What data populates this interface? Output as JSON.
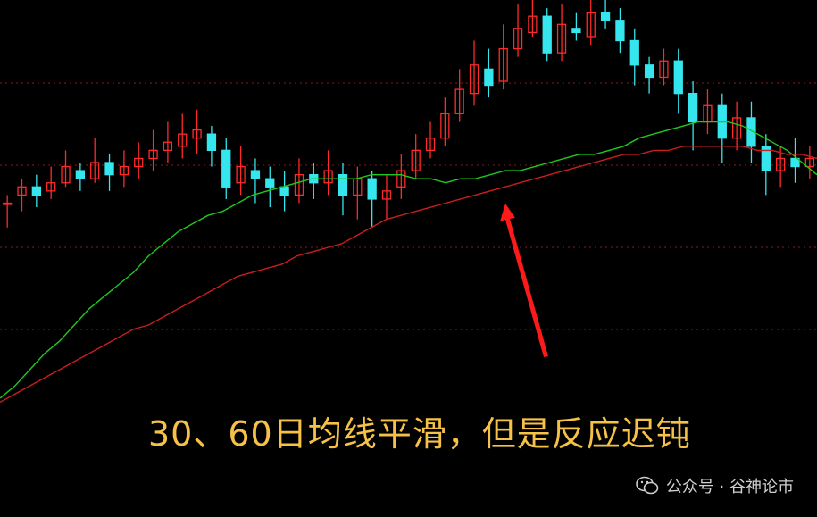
{
  "chart_data": {
    "type": "candlestick",
    "title": "",
    "annotation": "30、60日均线平滑，但是反应迟钝",
    "ylim": [
      0,
      100
    ],
    "grid": true,
    "colors": {
      "up": "#ff2a2a",
      "down": "#36e6ee",
      "ma30": "#1ec81e",
      "ma60": "#c81e1e",
      "background": "#000000",
      "grid": "#8a1a1a"
    },
    "series": [
      {
        "name": "MA30",
        "values": [
          2,
          5,
          9,
          13,
          16,
          20,
          24,
          27,
          30,
          33,
          37,
          40,
          43,
          45,
          47,
          48,
          50,
          52,
          53,
          54,
          55,
          56,
          56,
          56,
          56,
          57,
          57,
          57,
          56,
          56,
          55,
          56,
          56,
          57,
          58,
          58,
          59,
          60,
          61,
          62,
          62,
          63,
          64,
          66,
          67,
          68,
          69,
          70,
          70,
          70,
          69,
          67,
          65,
          63,
          60,
          57
        ]
      },
      {
        "name": "MA60",
        "values": [
          1,
          3,
          5,
          7,
          9,
          11,
          13,
          15,
          17,
          19,
          20,
          22,
          24,
          26,
          28,
          30,
          32,
          33,
          34,
          35,
          37,
          38,
          39,
          40,
          42,
          44,
          46,
          47,
          48,
          49,
          50,
          51,
          52,
          53,
          54,
          55,
          56,
          57,
          58,
          59,
          60,
          61,
          62,
          62,
          63,
          63,
          64,
          64,
          64,
          64,
          64,
          63,
          63,
          62,
          62,
          61
        ]
      }
    ],
    "candles": [
      [
        50,
        50,
        52,
        44
      ],
      [
        52,
        54,
        56,
        48
      ],
      [
        54,
        52,
        57,
        49
      ],
      [
        53,
        55,
        59,
        51
      ],
      [
        55,
        59,
        63,
        54
      ],
      [
        58,
        56,
        60,
        53
      ],
      [
        56,
        60,
        66,
        55
      ],
      [
        60,
        57,
        62,
        53
      ],
      [
        57,
        59,
        63,
        54
      ],
      [
        59,
        61,
        65,
        56
      ],
      [
        61,
        63,
        68,
        58
      ],
      [
        63,
        65,
        70,
        60
      ],
      [
        64,
        67,
        72,
        61
      ],
      [
        66,
        68,
        73,
        62
      ],
      [
        67,
        63,
        69,
        59
      ],
      [
        63,
        54,
        66,
        51
      ],
      [
        55,
        59,
        64,
        52
      ],
      [
        58,
        56,
        61,
        50
      ],
      [
        56,
        54,
        59,
        49
      ],
      [
        54,
        52,
        58,
        48
      ],
      [
        52,
        57,
        61,
        50
      ],
      [
        57,
        55,
        60,
        51
      ],
      [
        55,
        58,
        63,
        52
      ],
      [
        57,
        52,
        60,
        47
      ],
      [
        52,
        56,
        59,
        46
      ],
      [
        56,
        51,
        58,
        44
      ],
      [
        51,
        53,
        57,
        46
      ],
      [
        54,
        58,
        62,
        51
      ],
      [
        58,
        63,
        67,
        56
      ],
      [
        63,
        66,
        70,
        61
      ],
      [
        66,
        72,
        76,
        64
      ],
      [
        72,
        78,
        83,
        70
      ],
      [
        77,
        84,
        90,
        74
      ],
      [
        83,
        79,
        88,
        76
      ],
      [
        80,
        88,
        94,
        78
      ],
      [
        88,
        93,
        99,
        86
      ],
      [
        92,
        96,
        100,
        91
      ],
      [
        96,
        87,
        98,
        85
      ],
      [
        87,
        94,
        99,
        85
      ],
      [
        93,
        92,
        97,
        90
      ],
      [
        91,
        97,
        100,
        89
      ],
      [
        97,
        95,
        100,
        93
      ],
      [
        95,
        90,
        98,
        87
      ],
      [
        90,
        84,
        93,
        79
      ],
      [
        84,
        81,
        86,
        77
      ],
      [
        81,
        85,
        88,
        79
      ],
      [
        85,
        77,
        88,
        72
      ],
      [
        77,
        70,
        80,
        63
      ],
      [
        70,
        74,
        78,
        67
      ],
      [
        74,
        66,
        77,
        60
      ],
      [
        66,
        71,
        75,
        63
      ],
      [
        71,
        64,
        75,
        60
      ],
      [
        64,
        58,
        67,
        52
      ],
      [
        58,
        61,
        64,
        54
      ],
      [
        61,
        59,
        66,
        55
      ],
      [
        59,
        61,
        64,
        56
      ]
    ]
  },
  "watermark": {
    "text": "公众号 · 谷神论市",
    "icon": "wechat-icon"
  }
}
